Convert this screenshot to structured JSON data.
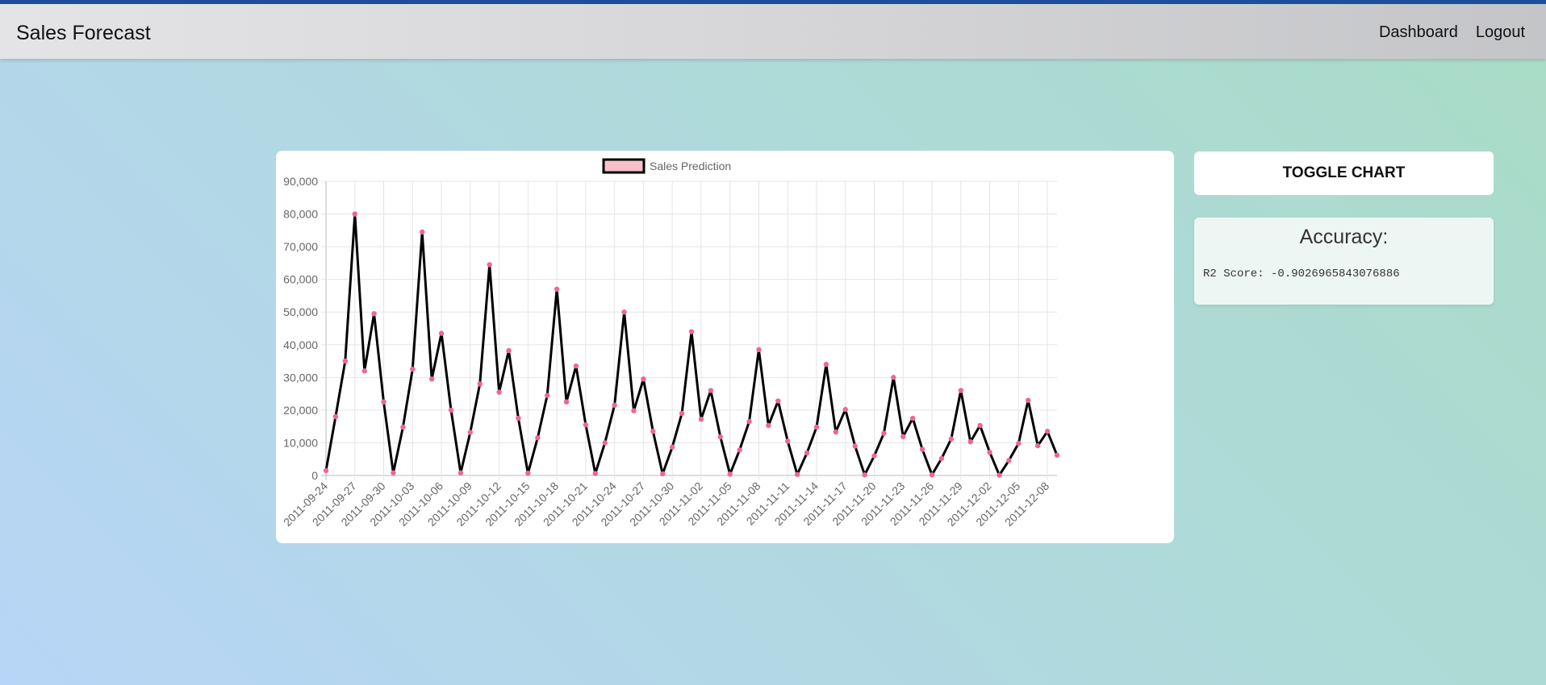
{
  "navbar": {
    "brand": "Sales Forecast",
    "links": [
      "Dashboard",
      "Logout"
    ]
  },
  "toggle_button": {
    "label": "TOGGLE CHART"
  },
  "accuracy": {
    "title": "Accuracy:",
    "score_text": "R2 Score: -0.9026965843076886"
  },
  "colors": {
    "accent_bar": "#1b4f9c",
    "line": "#000000",
    "points": "#f0668f",
    "legend_fill": "#f9c0cb"
  },
  "chart_data": {
    "type": "line",
    "title": "",
    "xlabel": "",
    "ylabel": "",
    "legend_position": "top",
    "grid": true,
    "ylim": [
      0,
      90000
    ],
    "y_ticks": [
      "90,000",
      "80,000",
      "70,000",
      "60,000",
      "50,000",
      "40,000",
      "30,000",
      "20,000",
      "10,000",
      "0"
    ],
    "x_tick_labels": [
      "2011-09-24",
      "2011-09-27",
      "2011-09-30",
      "2011-10-03",
      "2011-10-06",
      "2011-10-09",
      "2011-10-12",
      "2011-10-15",
      "2011-10-18",
      "2011-10-21",
      "2011-10-24",
      "2011-10-27",
      "2011-10-30",
      "2011-11-02",
      "2011-11-05",
      "2011-11-08",
      "2011-11-11",
      "2011-11-14",
      "2011-11-17",
      "2011-11-20",
      "2011-11-23",
      "2011-11-26",
      "2011-11-29",
      "2011-12-02",
      "2011-12-05",
      "2011-12-08"
    ],
    "x_start": "2011-09-24",
    "x_end": "2011-12-09",
    "series": [
      {
        "name": "Sales Prediction",
        "values": [
          1500,
          18000,
          35000,
          80000,
          32000,
          49500,
          22500,
          800,
          14800,
          32500,
          74500,
          29500,
          43500,
          20000,
          800,
          13200,
          28000,
          64500,
          25500,
          38200,
          17500,
          700,
          11500,
          24500,
          57000,
          22500,
          33500,
          15500,
          600,
          10000,
          21500,
          50000,
          19800,
          29500,
          13500,
          500,
          8700,
          19000,
          44000,
          17200,
          26000,
          11800,
          400,
          7800,
          16500,
          38500,
          15300,
          22800,
          10500,
          300,
          6900,
          14800,
          34000,
          13300,
          20200,
          9000,
          200,
          6000,
          12900,
          30000,
          11900,
          17500,
          8000,
          200,
          5200,
          11200,
          26000,
          10300,
          15300,
          7100,
          100,
          4600,
          9800,
          23000,
          9100,
          13500,
          6200
        ]
      }
    ]
  }
}
